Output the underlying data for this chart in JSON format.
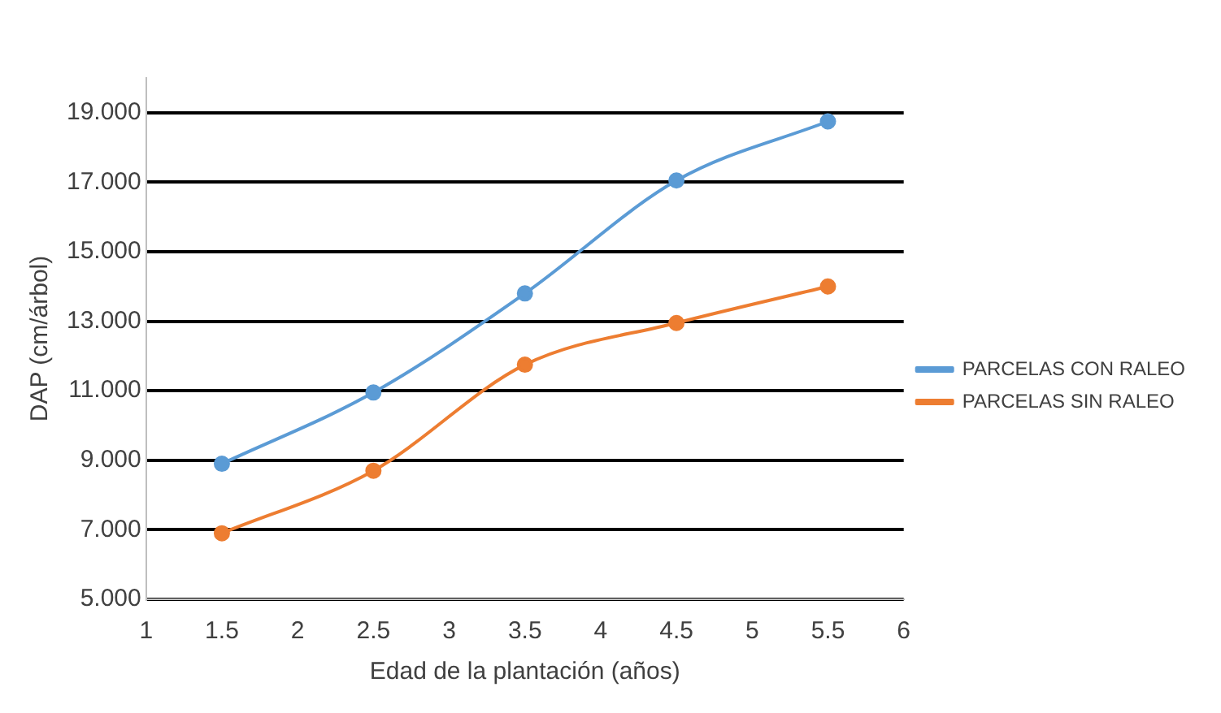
{
  "chart_data": {
    "type": "line",
    "xlabel": "Edad de la plantación (años)",
    "ylabel": "DAP (cm/árbol)",
    "xlim": [
      1,
      6
    ],
    "xticks": [
      1,
      1.5,
      2,
      2.5,
      3,
      3.5,
      4,
      4.5,
      5,
      5.5,
      6
    ],
    "ylim": [
      5,
      20
    ],
    "yticks": [
      {
        "value": 5,
        "label": "5.000"
      },
      {
        "value": 7,
        "label": "7.000"
      },
      {
        "value": 9,
        "label": "9.000"
      },
      {
        "value": 11,
        "label": "11.000"
      },
      {
        "value": 13,
        "label": "13.000"
      },
      {
        "value": 15,
        "label": "15.000"
      },
      {
        "value": 17,
        "label": "17.000"
      },
      {
        "value": 19,
        "label": "19.000"
      }
    ],
    "x": [
      1.5,
      2.5,
      3.5,
      4.5,
      5.5
    ],
    "series": [
      {
        "name": "PARCELAS CON RALEO",
        "color": "#5b9bd5",
        "values": [
          8.9,
          10.95,
          13.8,
          17.05,
          18.75
        ]
      },
      {
        "name": "PARCELAS SIN RALEO",
        "color": "#ed7d31",
        "values": [
          6.9,
          8.7,
          11.75,
          12.95,
          14.0
        ]
      }
    ],
    "grid": "y",
    "legend": "right",
    "marker": "circle",
    "line_style": "solid"
  }
}
